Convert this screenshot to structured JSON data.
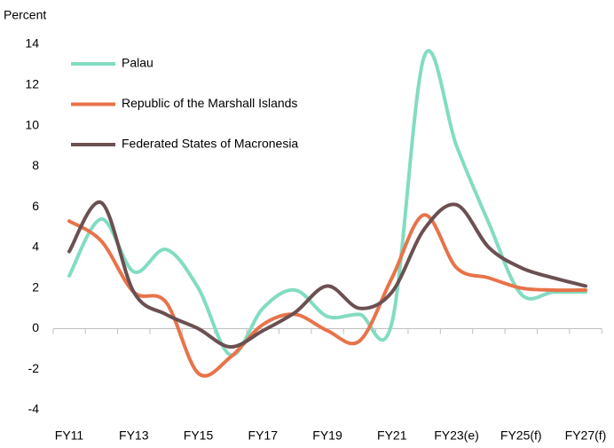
{
  "chart_data": {
    "type": "line",
    "y_axis_label": "Percent",
    "categories": [
      "FY11",
      null,
      "FY13",
      null,
      "FY15",
      null,
      "FY17",
      null,
      "FY19",
      null,
      "FY21",
      null,
      "FY23(e)",
      null,
      "FY25(f)",
      null,
      "FY27(f)"
    ],
    "series": [
      {
        "name": "Palau",
        "color": "#82dcc2",
        "values": [
          2.6,
          5.4,
          2.8,
          3.9,
          2.0,
          -1.3,
          1.0,
          1.9,
          0.6,
          0.7,
          0.3,
          13.4,
          9.0,
          5.2,
          1.7,
          1.8,
          1.8
        ]
      },
      {
        "name": "Republic of the Marshall Islands",
        "color": "#e8734a",
        "values": [
          5.3,
          4.3,
          1.8,
          1.3,
          -2.2,
          -1.4,
          0.2,
          0.7,
          -0.1,
          -0.6,
          2.5,
          5.6,
          3.0,
          2.5,
          2.0,
          1.9,
          1.9
        ]
      },
      {
        "name": "Federated States of Macronesia",
        "color": "#6b5052",
        "values": [
          3.8,
          6.2,
          1.8,
          0.7,
          0.0,
          -0.9,
          -0.1,
          0.8,
          2.1,
          1.0,
          1.8,
          4.9,
          6.1,
          4.0,
          3.0,
          2.5,
          2.1
        ]
      }
    ],
    "ylim": [
      -4,
      14
    ],
    "yticks": [
      -4,
      -2,
      0,
      2,
      4,
      6,
      8,
      10,
      12,
      14
    ],
    "legend": "upper-left",
    "grid": false
  }
}
